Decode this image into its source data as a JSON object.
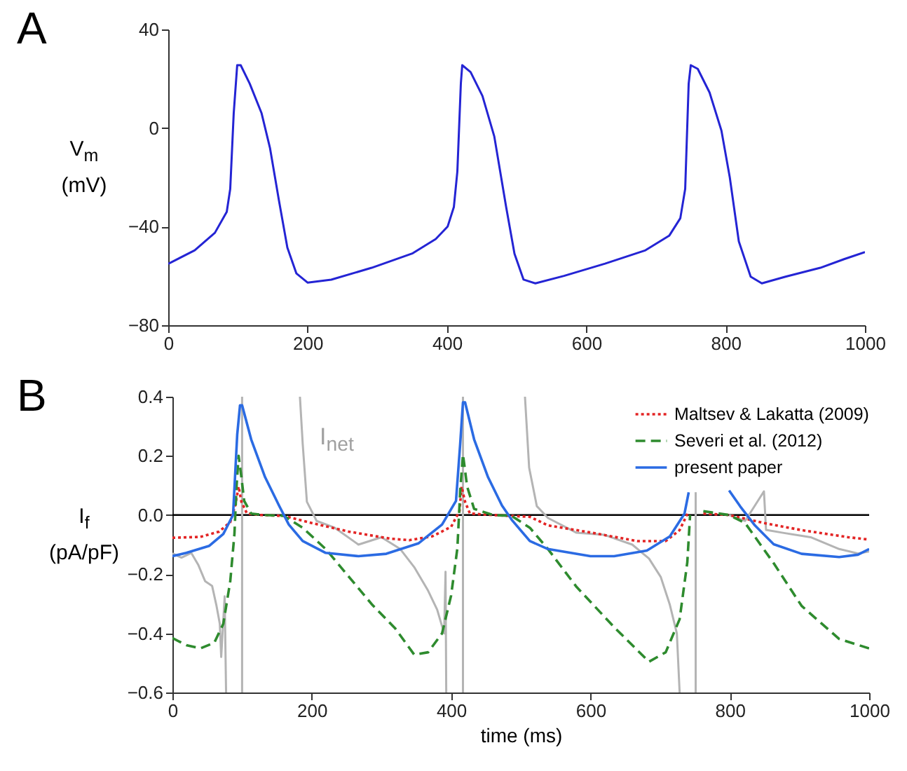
{
  "chart_data": [
    {
      "type": "line",
      "title": "A",
      "ylabel": "V$_{m}$ (mV)",
      "xlim": [
        0,
        1000
      ],
      "xticks": [
        0,
        200,
        400,
        600,
        800,
        1000
      ],
      "ylim": [
        -80,
        40
      ],
      "yticks": [
        -80,
        -40,
        0,
        40
      ],
      "series": [
        {
          "color": "#2424d4",
          "line_style": "solid",
          "x": [
            0,
            38,
            67,
            84,
            89,
            94,
            99,
            104,
            117,
            134,
            146,
            159,
            171,
            184,
            200,
            234,
            292,
            351,
            384,
            401,
            410,
            415,
            420,
            422,
            434,
            451,
            468,
            485,
            497,
            510,
            527,
            568,
            627,
            685,
            719,
            735,
            742,
            747,
            750,
            760,
            777,
            794,
            806,
            819,
            836,
            852,
            886,
            936,
            970,
            1000
          ],
          "values": [
            -55.1,
            -49.6,
            -42.5,
            -34,
            -24.7,
            6,
            25.5,
            25.5,
            18,
            6,
            -8,
            -29.5,
            -48.5,
            -59,
            -62.7,
            -61.5,
            -56.7,
            -50.8,
            -45,
            -40,
            -32,
            -17.6,
            18,
            25.5,
            22.7,
            13,
            -3.4,
            -32,
            -51,
            -61.5,
            -63,
            -60,
            -55,
            -49.6,
            -43.7,
            -36.6,
            -24.7,
            18,
            25.5,
            24,
            14.4,
            -1,
            -20,
            -46,
            -60.3,
            -63,
            -60.3,
            -56.7,
            -53.2,
            -50.3
          ]
        }
      ]
    },
    {
      "type": "line",
      "title": "B",
      "xlabel": "time (ms)",
      "ylabel": "I$_{f}$ (pA/pF)",
      "xlim": [
        0,
        1000
      ],
      "xticks": [
        0,
        200,
        400,
        600,
        800,
        1000
      ],
      "ylim": [
        -0.6,
        0.4
      ],
      "yticks": [
        -0.6,
        -0.4,
        -0.2,
        {
          "value": 0,
          "label": "0.0"
        },
        0.2,
        0.4
      ],
      "legend": "top right",
      "ref_lines": [
        {
          "axis": "y",
          "value": 0,
          "color": "#000000"
        }
      ],
      "annotations": [
        "I$_{net}$"
      ],
      "series": [
        {
          "color": "#b4b4b4",
          "line_style": "solid",
          "x": [
            0,
            13,
            27,
            37,
            47,
            57,
            63,
            68,
            70,
            75,
            77,
            80,
            100,
            100,
            120,
            183,
            187,
            193,
            207,
            233,
            267,
            300,
            327,
            347,
            367,
            380,
            390,
            392,
            393,
            400,
            417,
            417,
            450,
            506,
            512,
            523,
            539,
            580,
            620,
            660,
            684,
            701,
            714,
            724,
            728,
            740,
            751,
            751,
            780,
            799,
            822,
            849,
            852,
            876,
            916,
            957,
            984,
            1000
          ],
          "values": [
            -0.13,
            -0.144,
            -0.128,
            -0.168,
            -0.224,
            -0.24,
            -0.304,
            -0.368,
            -0.48,
            -0.275,
            -0.6,
            null,
            -0.6,
            0.4,
            null,
            0.4,
            0.24,
            0.045,
            -0.02,
            -0.043,
            -0.1,
            -0.075,
            -0.115,
            -0.176,
            -0.256,
            -0.32,
            -0.4,
            -0.192,
            -0.6,
            null,
            -0.6,
            0.4,
            null,
            0.4,
            0.16,
            0.03,
            -0.01,
            -0.06,
            -0.067,
            -0.1,
            -0.147,
            -0.21,
            -0.304,
            -0.4,
            -0.6,
            null,
            -0.6,
            0.077,
            null,
            0,
            -0.02,
            0.08,
            -0.05,
            -0.06,
            -0.075,
            -0.115,
            -0.13,
            -0.123
          ]
        },
        {
          "name": "Maltsev & Lakatta (2009)",
          "color": "#e32424",
          "line_style": "dotted",
          "x": [
            0,
            40,
            67,
            83,
            90,
            95,
            99,
            107,
            127,
            160,
            200,
            253,
            313,
            340,
            373,
            400,
            412,
            415,
            420,
            427,
            460,
            513,
            539,
            600,
            667,
            708,
            728,
            741,
            750,
            762,
            799,
            849,
            903,
            970,
            1000
          ],
          "values": [
            -0.077,
            -0.074,
            -0.056,
            -0.024,
            0.032,
            0.096,
            0.045,
            0.005,
            0,
            -0.003,
            -0.027,
            -0.056,
            -0.08,
            -0.085,
            -0.072,
            -0.04,
            0.013,
            0.096,
            0.045,
            0.005,
            0,
            -0.006,
            -0.035,
            -0.059,
            -0.088,
            -0.088,
            -0.051,
            0.013,
            null,
            0.005,
            0,
            -0.027,
            -0.051,
            -0.075,
            -0.083
          ]
        },
        {
          "name": "Severi et al. (2012)",
          "color": "#2e8b2e",
          "line_style": "dashed",
          "x": [
            0,
            20,
            40,
            60,
            73,
            83,
            89,
            92,
            95,
            99,
            103,
            113,
            133,
            160,
            187,
            220,
            253,
            287,
            320,
            347,
            367,
            387,
            400,
            409,
            413,
            417,
            423,
            433,
            460,
            487,
            513,
            539,
            580,
            634,
            684,
            708,
            728,
            739,
            743,
            750,
            762,
            799,
            822,
            863,
            903,
            957,
            1000
          ],
          "values": [
            -0.416,
            -0.44,
            -0.451,
            -0.432,
            -0.368,
            -0.224,
            -0.064,
            0.096,
            0.2,
            0.128,
            0.048,
            0.005,
            0,
            -0.003,
            -0.043,
            -0.115,
            -0.208,
            -0.304,
            -0.384,
            -0.472,
            -0.464,
            -0.4,
            -0.272,
            -0.112,
            0.08,
            0.205,
            0.096,
            0.021,
            0,
            -0.003,
            -0.043,
            -0.115,
            -0.243,
            -0.379,
            -0.496,
            -0.464,
            -0.352,
            -0.16,
            0,
            null,
            0.013,
            0,
            -0.027,
            -0.163,
            -0.307,
            -0.419,
            -0.451
          ]
        },
        {
          "name": "present paper",
          "color": "#2b6be3",
          "line_style": "solid",
          "x": [
            0,
            20,
            53,
            73,
            87,
            93,
            97,
            100,
            113,
            133,
            153,
            167,
            187,
            220,
            267,
            307,
            353,
            387,
            407,
            413,
            417,
            420,
            433,
            453,
            473,
            487,
            513,
            539,
            600,
            634,
            681,
            714,
            735,
            741,
            770,
            799,
            815,
            836,
            863,
            903,
            957,
            984,
            1000
          ],
          "values": [
            -0.139,
            -0.128,
            -0.104,
            -0.064,
            0,
            0.272,
            0.371,
            0.371,
            0.256,
            0.128,
            0.032,
            -0.032,
            -0.088,
            -0.128,
            -0.139,
            -0.131,
            -0.096,
            -0.032,
            0.048,
            0.24,
            0.381,
            0.381,
            0.256,
            0.128,
            0.032,
            -0.016,
            -0.088,
            -0.115,
            -0.139,
            -0.139,
            -0.12,
            -0.072,
            0.005,
            0.077,
            null,
            0.083,
            0.029,
            -0.035,
            -0.099,
            -0.131,
            -0.142,
            -0.134,
            -0.115
          ]
        }
      ]
    }
  ]
}
